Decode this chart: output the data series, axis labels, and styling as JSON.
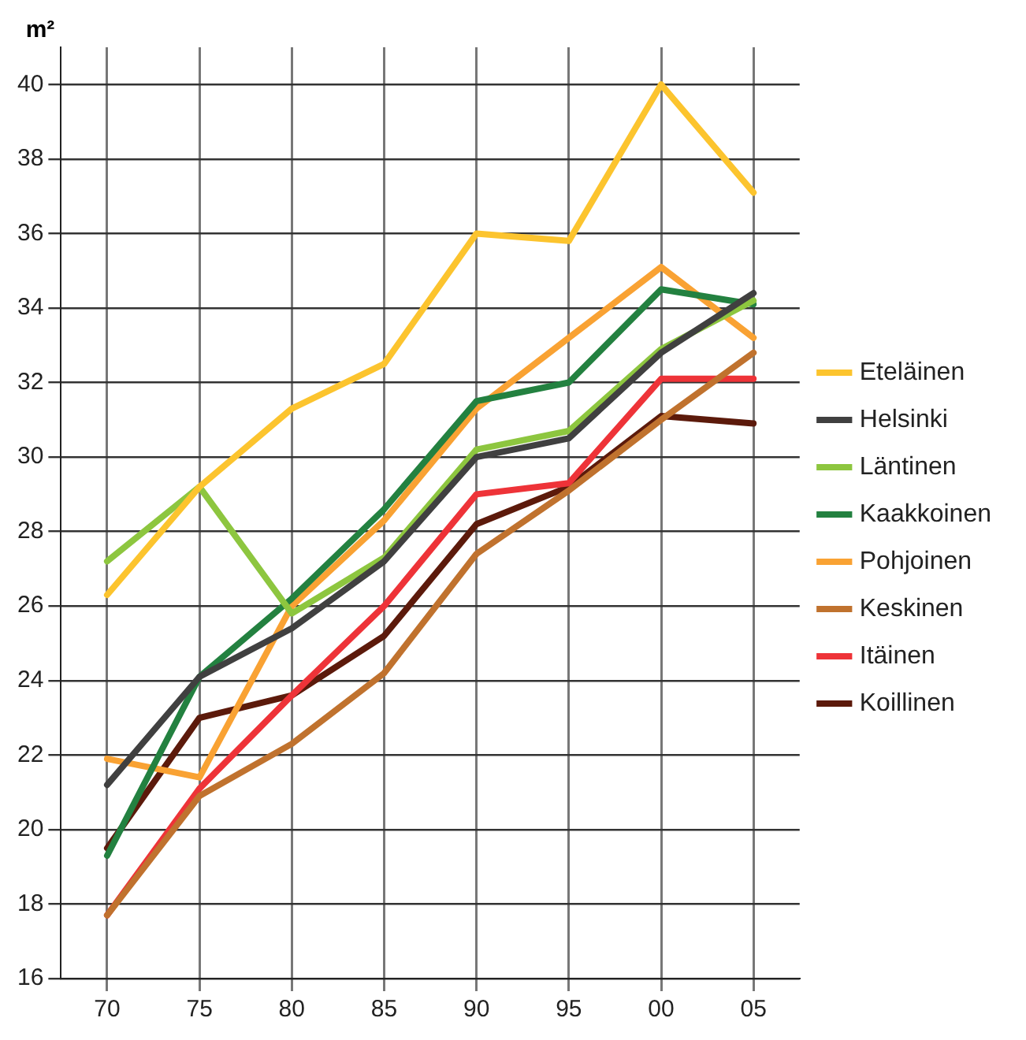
{
  "chart_data": {
    "type": "line",
    "ylabel": "m²",
    "categories": [
      "70",
      "75",
      "80",
      "85",
      "90",
      "95",
      "00",
      "05"
    ],
    "series": [
      {
        "name": "Eteläinen",
        "color": "#fcc42e",
        "values": [
          26.3,
          29.2,
          31.3,
          32.5,
          36.0,
          35.8,
          40.0,
          37.1
        ]
      },
      {
        "name": "Helsinki",
        "color": "#404040",
        "values": [
          21.2,
          24.1,
          25.4,
          27.2,
          30.0,
          30.5,
          32.8,
          34.4
        ]
      },
      {
        "name": "Läntinen",
        "color": "#8dc63f",
        "values": [
          27.2,
          29.2,
          25.8,
          27.3,
          30.2,
          30.7,
          32.9,
          34.2
        ]
      },
      {
        "name": "Kaakkoinen",
        "color": "#238140",
        "values": [
          19.3,
          24.1,
          26.2,
          28.6,
          31.5,
          32.0,
          34.5,
          34.1
        ]
      },
      {
        "name": "Pohjoinen",
        "color": "#f9a233",
        "values": [
          21.9,
          21.4,
          26.0,
          28.3,
          31.3,
          33.2,
          35.1,
          33.2
        ]
      },
      {
        "name": "Keskinen",
        "color": "#c0722e",
        "values": [
          17.7,
          20.9,
          22.3,
          24.2,
          27.4,
          29.1,
          31.0,
          32.8
        ]
      },
      {
        "name": "Itäinen",
        "color": "#ee3338",
        "values": [
          17.7,
          21.1,
          23.6,
          26.0,
          29.0,
          29.3,
          32.1,
          32.1
        ]
      },
      {
        "name": "Koillinen",
        "color": "#5c1a0b",
        "values": [
          19.5,
          23.0,
          23.6,
          25.2,
          28.2,
          29.2,
          31.1,
          30.9
        ]
      }
    ],
    "ylim": [
      16,
      41
    ],
    "yticks": [
      16,
      18,
      20,
      22,
      24,
      26,
      28,
      30,
      32,
      34,
      36,
      38,
      40
    ],
    "grid": true,
    "legend": "right",
    "marker": "none",
    "line_style": "solid"
  }
}
